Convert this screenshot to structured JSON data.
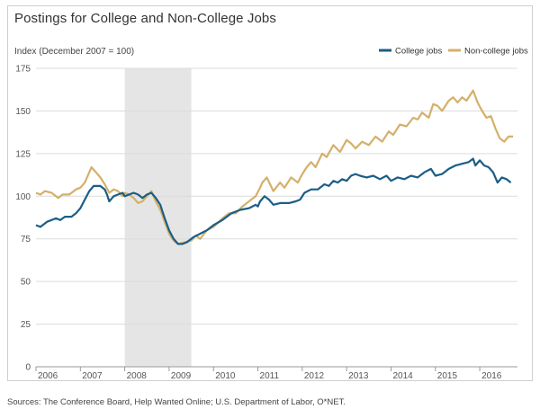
{
  "title": "Postings for College and Non-College Jobs",
  "source": "Sources: The Conference Board, Help Wanted Online; U.S. Department of Labor, O*NET.",
  "chart_data": {
    "type": "line",
    "title": "Postings for College and Non-College Jobs",
    "ylabel": "Index (December 2007 = 100)",
    "ylim": [
      0,
      175
    ],
    "yticks": [
      0,
      25,
      50,
      75,
      100,
      125,
      150,
      175
    ],
    "xlim": [
      2006.0,
      2016.85
    ],
    "xticks": [
      "2006",
      "2007",
      "2008",
      "2009",
      "2010",
      "2011",
      "2012",
      "2013",
      "2014",
      "2015",
      "2016"
    ],
    "grid": "horizontal",
    "legend": "top-right",
    "shaded_period": [
      2008.0,
      2009.5
    ],
    "series": [
      {
        "name": "College jobs",
        "color": "#1b5e86",
        "points": [
          [
            2006.0,
            83
          ],
          [
            2006.1,
            82
          ],
          [
            2006.25,
            85
          ],
          [
            2006.45,
            87
          ],
          [
            2006.55,
            86
          ],
          [
            2006.65,
            88
          ],
          [
            2006.8,
            88
          ],
          [
            2006.9,
            90
          ],
          [
            2007.0,
            93
          ],
          [
            2007.1,
            98
          ],
          [
            2007.2,
            103
          ],
          [
            2007.3,
            106
          ],
          [
            2007.45,
            106
          ],
          [
            2007.55,
            104
          ],
          [
            2007.6,
            101
          ],
          [
            2007.65,
            97
          ],
          [
            2007.75,
            100
          ],
          [
            2007.85,
            101
          ],
          [
            2007.95,
            102
          ],
          [
            2008.0,
            100
          ],
          [
            2008.1,
            101
          ],
          [
            2008.2,
            102
          ],
          [
            2008.3,
            101
          ],
          [
            2008.4,
            99
          ],
          [
            2008.5,
            101
          ],
          [
            2008.6,
            102
          ],
          [
            2008.7,
            99
          ],
          [
            2008.8,
            95
          ],
          [
            2008.9,
            87
          ],
          [
            2009.0,
            80
          ],
          [
            2009.1,
            75
          ],
          [
            2009.2,
            72
          ],
          [
            2009.3,
            72
          ],
          [
            2009.4,
            73
          ],
          [
            2009.55,
            76
          ],
          [
            2009.7,
            78
          ],
          [
            2009.85,
            80
          ],
          [
            2010.0,
            83
          ],
          [
            2010.2,
            86
          ],
          [
            2010.4,
            90
          ],
          [
            2010.6,
            92
          ],
          [
            2010.8,
            93
          ],
          [
            2010.95,
            95
          ],
          [
            2011.0,
            94
          ],
          [
            2011.05,
            97
          ],
          [
            2011.15,
            100
          ],
          [
            2011.25,
            98
          ],
          [
            2011.35,
            95
          ],
          [
            2011.5,
            96
          ],
          [
            2011.7,
            96
          ],
          [
            2011.85,
            97
          ],
          [
            2011.95,
            98
          ],
          [
            2012.05,
            102
          ],
          [
            2012.2,
            104
          ],
          [
            2012.35,
            104
          ],
          [
            2012.5,
            107
          ],
          [
            2012.6,
            106
          ],
          [
            2012.7,
            109
          ],
          [
            2012.8,
            108
          ],
          [
            2012.9,
            110
          ],
          [
            2013.0,
            109
          ],
          [
            2013.1,
            112
          ],
          [
            2013.2,
            113
          ],
          [
            2013.3,
            112
          ],
          [
            2013.45,
            111
          ],
          [
            2013.6,
            112
          ],
          [
            2013.75,
            110
          ],
          [
            2013.9,
            112
          ],
          [
            2014.0,
            109
          ],
          [
            2014.15,
            111
          ],
          [
            2014.3,
            110
          ],
          [
            2014.45,
            112
          ],
          [
            2014.6,
            111
          ],
          [
            2014.75,
            114
          ],
          [
            2014.9,
            116
          ],
          [
            2015.0,
            112
          ],
          [
            2015.15,
            113
          ],
          [
            2015.3,
            116
          ],
          [
            2015.45,
            118
          ],
          [
            2015.6,
            119
          ],
          [
            2015.75,
            120
          ],
          [
            2015.85,
            122
          ],
          [
            2015.9,
            118
          ],
          [
            2016.0,
            121
          ],
          [
            2016.1,
            118
          ],
          [
            2016.2,
            117
          ],
          [
            2016.3,
            114
          ],
          [
            2016.4,
            108
          ],
          [
            2016.5,
            111
          ],
          [
            2016.6,
            110
          ],
          [
            2016.7,
            108
          ]
        ]
      },
      {
        "name": "Non-college jobs",
        "color": "#d4b06a",
        "points": [
          [
            2006.0,
            102
          ],
          [
            2006.1,
            101
          ],
          [
            2006.2,
            103
          ],
          [
            2006.35,
            102
          ],
          [
            2006.5,
            99
          ],
          [
            2006.6,
            101
          ],
          [
            2006.75,
            101
          ],
          [
            2006.9,
            104
          ],
          [
            2007.0,
            105
          ],
          [
            2007.1,
            108
          ],
          [
            2007.2,
            114
          ],
          [
            2007.25,
            117
          ],
          [
            2007.35,
            114
          ],
          [
            2007.45,
            111
          ],
          [
            2007.55,
            107
          ],
          [
            2007.65,
            102
          ],
          [
            2007.75,
            104
          ],
          [
            2007.85,
            103
          ],
          [
            2007.95,
            100
          ],
          [
            2008.0,
            102
          ],
          [
            2008.1,
            101
          ],
          [
            2008.2,
            99
          ],
          [
            2008.3,
            96
          ],
          [
            2008.4,
            97
          ],
          [
            2008.5,
            100
          ],
          [
            2008.6,
            103
          ],
          [
            2008.7,
            97
          ],
          [
            2008.8,
            92
          ],
          [
            2008.9,
            85
          ],
          [
            2009.0,
            78
          ],
          [
            2009.1,
            74
          ],
          [
            2009.2,
            72
          ],
          [
            2009.35,
            73
          ],
          [
            2009.5,
            74
          ],
          [
            2009.6,
            77
          ],
          [
            2009.7,
            75
          ],
          [
            2009.85,
            80
          ],
          [
            2010.0,
            82
          ],
          [
            2010.2,
            87
          ],
          [
            2010.35,
            90
          ],
          [
            2010.5,
            90
          ],
          [
            2010.65,
            94
          ],
          [
            2010.8,
            97
          ],
          [
            2010.95,
            100
          ],
          [
            2011.05,
            105
          ],
          [
            2011.1,
            108
          ],
          [
            2011.2,
            111
          ],
          [
            2011.35,
            103
          ],
          [
            2011.5,
            108
          ],
          [
            2011.6,
            105
          ],
          [
            2011.75,
            111
          ],
          [
            2011.9,
            108
          ],
          [
            2012.0,
            113
          ],
          [
            2012.1,
            117
          ],
          [
            2012.2,
            120
          ],
          [
            2012.3,
            117
          ],
          [
            2012.45,
            125
          ],
          [
            2012.55,
            123
          ],
          [
            2012.7,
            130
          ],
          [
            2012.85,
            126
          ],
          [
            2013.0,
            133
          ],
          [
            2013.1,
            131
          ],
          [
            2013.2,
            128
          ],
          [
            2013.35,
            132
          ],
          [
            2013.5,
            130
          ],
          [
            2013.65,
            135
          ],
          [
            2013.8,
            132
          ],
          [
            2013.95,
            138
          ],
          [
            2014.05,
            136
          ],
          [
            2014.2,
            142
          ],
          [
            2014.35,
            141
          ],
          [
            2014.5,
            146
          ],
          [
            2014.6,
            145
          ],
          [
            2014.7,
            149
          ],
          [
            2014.85,
            146
          ],
          [
            2014.95,
            154
          ],
          [
            2015.05,
            153
          ],
          [
            2015.15,
            150
          ],
          [
            2015.3,
            156
          ],
          [
            2015.4,
            158
          ],
          [
            2015.5,
            155
          ],
          [
            2015.6,
            158
          ],
          [
            2015.7,
            156
          ],
          [
            2015.8,
            160
          ],
          [
            2015.85,
            162
          ],
          [
            2015.95,
            155
          ],
          [
            2016.05,
            150
          ],
          [
            2016.15,
            146
          ],
          [
            2016.25,
            147
          ],
          [
            2016.35,
            140
          ],
          [
            2016.45,
            134
          ],
          [
            2016.55,
            132
          ],
          [
            2016.65,
            135
          ],
          [
            2016.75,
            135
          ]
        ]
      }
    ]
  }
}
